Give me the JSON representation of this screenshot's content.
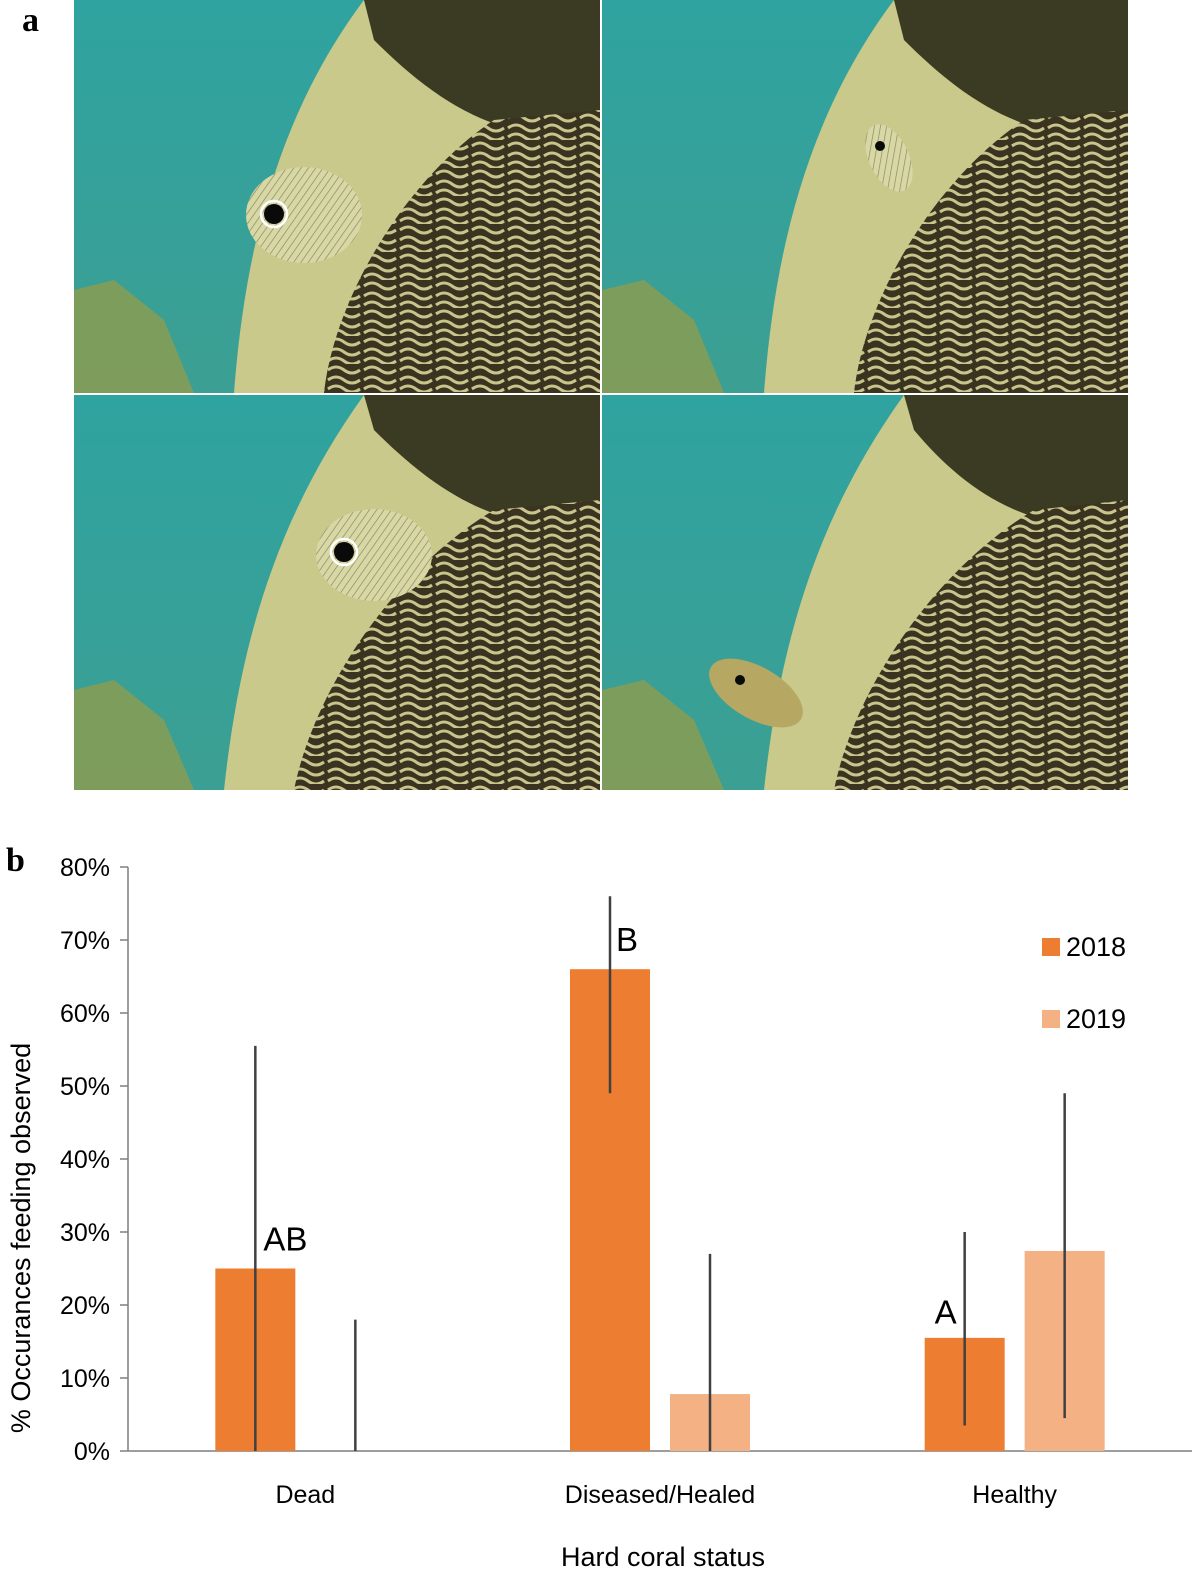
{
  "panel_a": {
    "label": "a"
  },
  "panel_b": {
    "label": "b"
  },
  "colors": {
    "series_2018": "#ED7D31",
    "series_2019": "#F4B183",
    "error_bar": "#404040",
    "water": "#2f9e9a",
    "coral_light": "#c8c98a",
    "coral_dark": "#3a3320"
  },
  "chart_data": {
    "type": "bar",
    "title": "",
    "xlabel": "Hard coral status",
    "ylabel": "% Occurances feeding observed",
    "ylim": [
      0,
      0.8
    ],
    "yticks": [
      "0%",
      "10%",
      "20%",
      "30%",
      "40%",
      "50%",
      "60%",
      "70%",
      "80%"
    ],
    "categories": [
      "Dead",
      "Diseased/Healed",
      "Healthy"
    ],
    "series": [
      {
        "name": "2018",
        "values": [
          0.25,
          0.66,
          0.155
        ],
        "error_low": [
          0.0,
          0.49,
          0.035
        ],
        "error_high": [
          0.555,
          0.76,
          0.3
        ]
      },
      {
        "name": "2019",
        "values": [
          0.0,
          0.078,
          0.274
        ],
        "error_low": [
          0.0,
          0.0,
          0.045
        ],
        "error_high": [
          0.18,
          0.27,
          0.49
        ]
      }
    ],
    "annotations": [
      {
        "text": "AB",
        "category": 0,
        "series": 0,
        "y": 0.275
      },
      {
        "text": "B",
        "category": 1,
        "series": 0,
        "y": 0.685
      },
      {
        "text": "A",
        "category": 2,
        "series": 0,
        "y": 0.175
      }
    ],
    "legend_position": "right",
    "grid": false
  }
}
